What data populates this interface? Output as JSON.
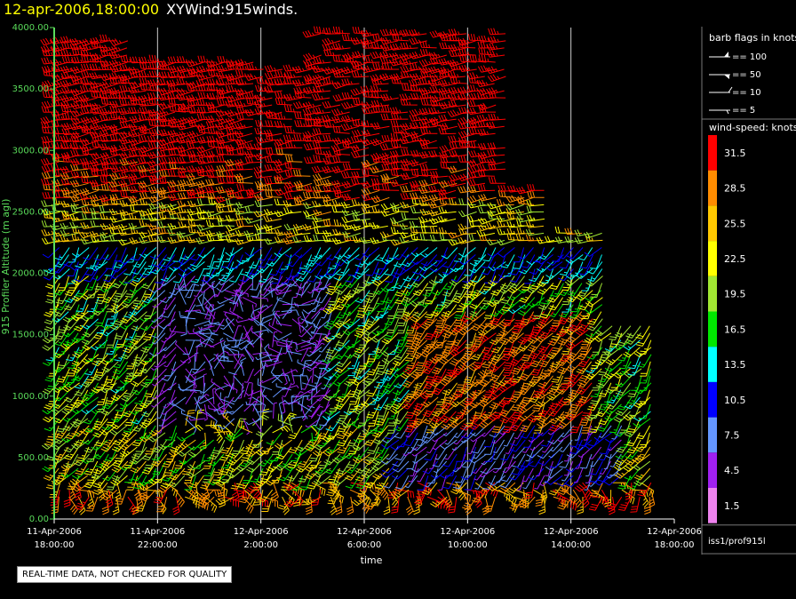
{
  "header": {
    "datetime": "12-apr-2006,18:00:00",
    "product": "XYWind:915winds."
  },
  "colors": {
    "axis": "#5adc5a",
    "grid": "#ffffff",
    "background": "#000000"
  },
  "chart_data": {
    "type": "wind-barb-time-height",
    "xlabel": "time",
    "ylabel": "915 Profiler Altitude (m agl)",
    "xticks": [
      {
        "l1": "11-Apr-2006",
        "l2": "18:00:00",
        "h": 0
      },
      {
        "l1": "11-Apr-2006",
        "l2": "22:00:00",
        "h": 4
      },
      {
        "l1": "12-Apr-2006",
        "l2": "2:00:00",
        "h": 8
      },
      {
        "l1": "12-Apr-2006",
        "l2": "6:00:00",
        "h": 12
      },
      {
        "l1": "12-Apr-2006",
        "l2": "10:00:00",
        "h": 16
      },
      {
        "l1": "12-Apr-2006",
        "l2": "14:00:00",
        "h": 20
      },
      {
        "l1": "12-Apr-2006",
        "l2": "18:00:00",
        "h": 24
      }
    ],
    "xlim_hours": [
      0,
      24
    ],
    "yticks": [
      "0.00",
      "500.00",
      "1000.00",
      "1500.00",
      "2000.00",
      "2500.00",
      "3000.00",
      "3500.00",
      "4000.00"
    ],
    "ylim": [
      0,
      4000
    ],
    "grid": "vertical at x ticks",
    "barb_legend": {
      "title": "barb flags in knots",
      "items": [
        "== 100",
        "== 50",
        "== 10",
        "== 5"
      ]
    },
    "speed_legend": {
      "title": "wind-speed: knots",
      "levels": [
        {
          "label": "31.5",
          "color": "#ff0000"
        },
        {
          "label": "28.5",
          "color": "#ff8c00"
        },
        {
          "label": "25.5",
          "color": "#ffc800"
        },
        {
          "label": "22.5",
          "color": "#ffff00"
        },
        {
          "label": "19.5",
          "color": "#a0e632"
        },
        {
          "label": "16.5",
          "color": "#00e600"
        },
        {
          "label": "13.5",
          "color": "#00ffff"
        },
        {
          "label": "10.5",
          "color": "#0000ff"
        },
        {
          "label": "7.5",
          "color": "#6496ff"
        },
        {
          "label": "4.5",
          "color": "#a020f0"
        },
        {
          "label": "1.5",
          "color": "#ee82ee"
        }
      ]
    },
    "source": "iss1/prof915l"
  },
  "notice": "REAL-TIME DATA, NOT CHECKED FOR QUALITY"
}
